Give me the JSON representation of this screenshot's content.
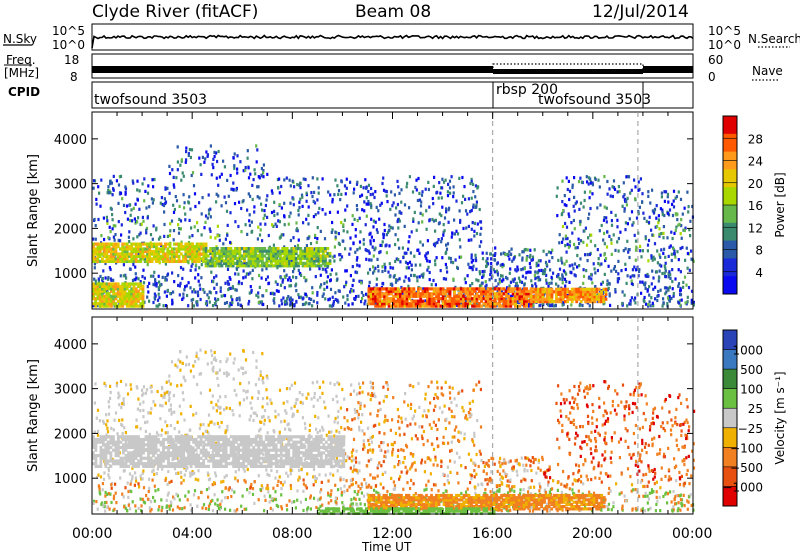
{
  "header": {
    "station": "Clyde River (fitACF)",
    "beam": "Beam 08",
    "date": "12/Jul/2014"
  },
  "top_panels": {
    "nsky_label": "N.Sky",
    "nsearch_label": "N.Search",
    "nsky_ticks": [
      "10^5",
      "10^0"
    ],
    "nsearch_ticks": [
      "10^5",
      "10^0"
    ],
    "freq_label_line1": "Freq.",
    "freq_label_line2": "[MHz]",
    "freq_ticks": [
      "18",
      "8"
    ],
    "nave_label": "Nave",
    "nave_ticks": [
      "60",
      "0"
    ],
    "cpid_label": "CPID",
    "cpid_entries": [
      "twofsound 3503",
      "rbsp 200",
      "twofsound 3503"
    ]
  },
  "power_colorbar": {
    "label": "Power [dB]",
    "ticks": [
      "28",
      "24",
      "20",
      "16",
      "12",
      "8",
      "4"
    ],
    "colors": [
      "#e00000",
      "#ff5a00",
      "#ff9a1a",
      "#e6c800",
      "#a8d800",
      "#66b84a",
      "#3a8a70",
      "#2a5aa8",
      "#1a2ad8",
      "#0a0af0"
    ]
  },
  "velocity_colorbar": {
    "label": "Velocity [m s⁻¹]",
    "ticks": [
      "1000",
      "500",
      "100",
      "25",
      "−25",
      "−100",
      "−500",
      "−1000"
    ],
    "colors": [
      "#2a44b8",
      "#3a78c0",
      "#3a8a3a",
      "#6ac040",
      "#c8c8c8",
      "#f0b000",
      "#f08020",
      "#e85010",
      "#e00000"
    ]
  },
  "chart_data": [
    {
      "type": "heatmap",
      "name": "power",
      "ylabel": "Slant Range [km]",
      "yticks": [
        "1000",
        "2000",
        "3000",
        "4000"
      ],
      "ylim": [
        200,
        4600
      ],
      "xlim": [
        0,
        24
      ],
      "xticks": [
        "00:00",
        "04:00",
        "08:00",
        "12:00",
        "16:00",
        "20:00",
        "00:00"
      ],
      "mode_change_times_h": [
        16.0,
        21.8
      ],
      "bands": [
        {
          "t0": 0.0,
          "t1": 4.5,
          "r0": 1300,
          "r1": 1700,
          "level": 24
        },
        {
          "t0": 4.5,
          "t1": 9.5,
          "r0": 1200,
          "r1": 1600,
          "level": 20
        },
        {
          "t0": 0.0,
          "t1": 2.0,
          "r0": 300,
          "r1": 800,
          "level": 24
        },
        {
          "t0": 11.0,
          "t1": 17.5,
          "r0": 300,
          "r1": 700,
          "level": 30
        },
        {
          "t0": 17.5,
          "t1": 20.5,
          "r0": 400,
          "r1": 700,
          "level": 28
        }
      ]
    },
    {
      "type": "heatmap",
      "name": "velocity",
      "ylabel": "Slant Range [km]",
      "yticks": [
        "1000",
        "2000",
        "3000",
        "4000"
      ],
      "ylim": [
        200,
        4600
      ],
      "xlim": [
        0,
        24
      ],
      "xlabel": "Time UT",
      "xticks": [
        "00:00",
        "04:00",
        "08:00",
        "12:00",
        "16:00",
        "20:00",
        "00:00"
      ],
      "mode_change_times_h": [
        16.0,
        21.8
      ]
    }
  ]
}
